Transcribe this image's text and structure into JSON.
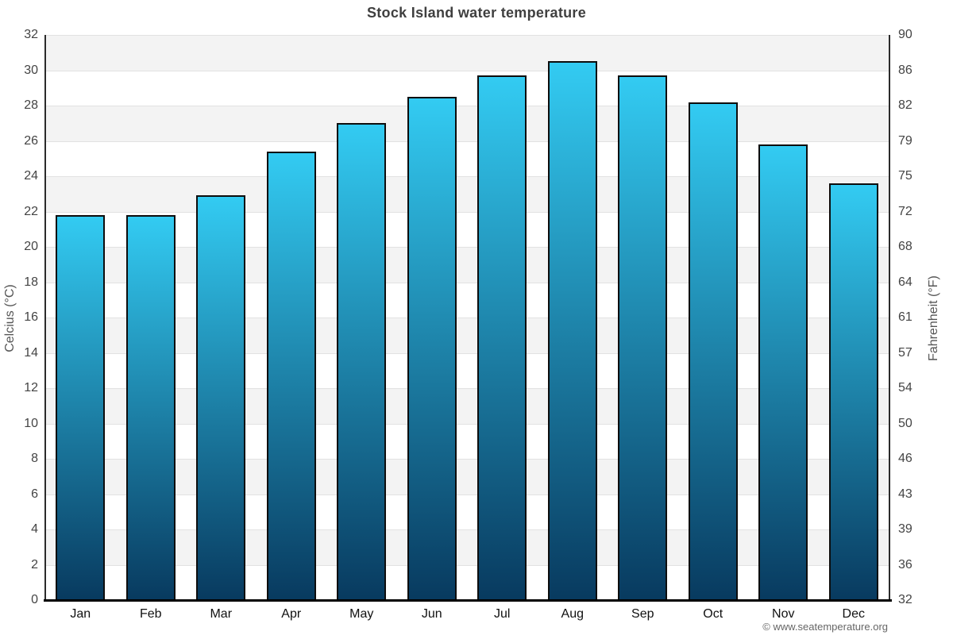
{
  "title": "Stock Island water temperature",
  "footer": "© www.seatemperature.org",
  "chart_data": {
    "type": "bar",
    "title": "Stock Island water temperature",
    "categories": [
      "Jan",
      "Feb",
      "Mar",
      "Apr",
      "May",
      "Jun",
      "Jul",
      "Aug",
      "Sep",
      "Oct",
      "Nov",
      "Dec"
    ],
    "values": [
      21.8,
      21.8,
      22.9,
      25.4,
      27.0,
      28.5,
      29.7,
      30.5,
      29.7,
      28.2,
      25.8,
      23.6
    ],
    "unit": "°C",
    "xlabel": "",
    "ylabel_left": "Celcius (°C)",
    "ylabel_right": "Fahrenheit (°F)",
    "ylim_left": [
      0,
      32
    ],
    "left_ticks": [
      32,
      30,
      28,
      26,
      24,
      22,
      20,
      18,
      16,
      14,
      12,
      10,
      8,
      6,
      4,
      2,
      0
    ],
    "right_ticks": [
      90,
      86,
      82,
      79,
      75,
      72,
      68,
      64,
      61,
      57,
      54,
      50,
      46,
      43,
      39,
      36,
      32
    ],
    "grid": "horizontal gridlines every 2°C with alternating gray/white bands, gray topmost",
    "legend": "none",
    "colors": {
      "bar_top": "#33cbf2",
      "bar_bottom": "#083a5f",
      "bar_border": "#0d0d0d",
      "band_gray": "#f3f3f3",
      "gridline": "#e2e2e2",
      "axis_line": "#2b2b2b",
      "baseline": "#000000",
      "title": "#3f3f3f",
      "tick_label": "#444444",
      "month_label": "#111111",
      "axis_title": "#555555",
      "footer": "#666666"
    }
  }
}
